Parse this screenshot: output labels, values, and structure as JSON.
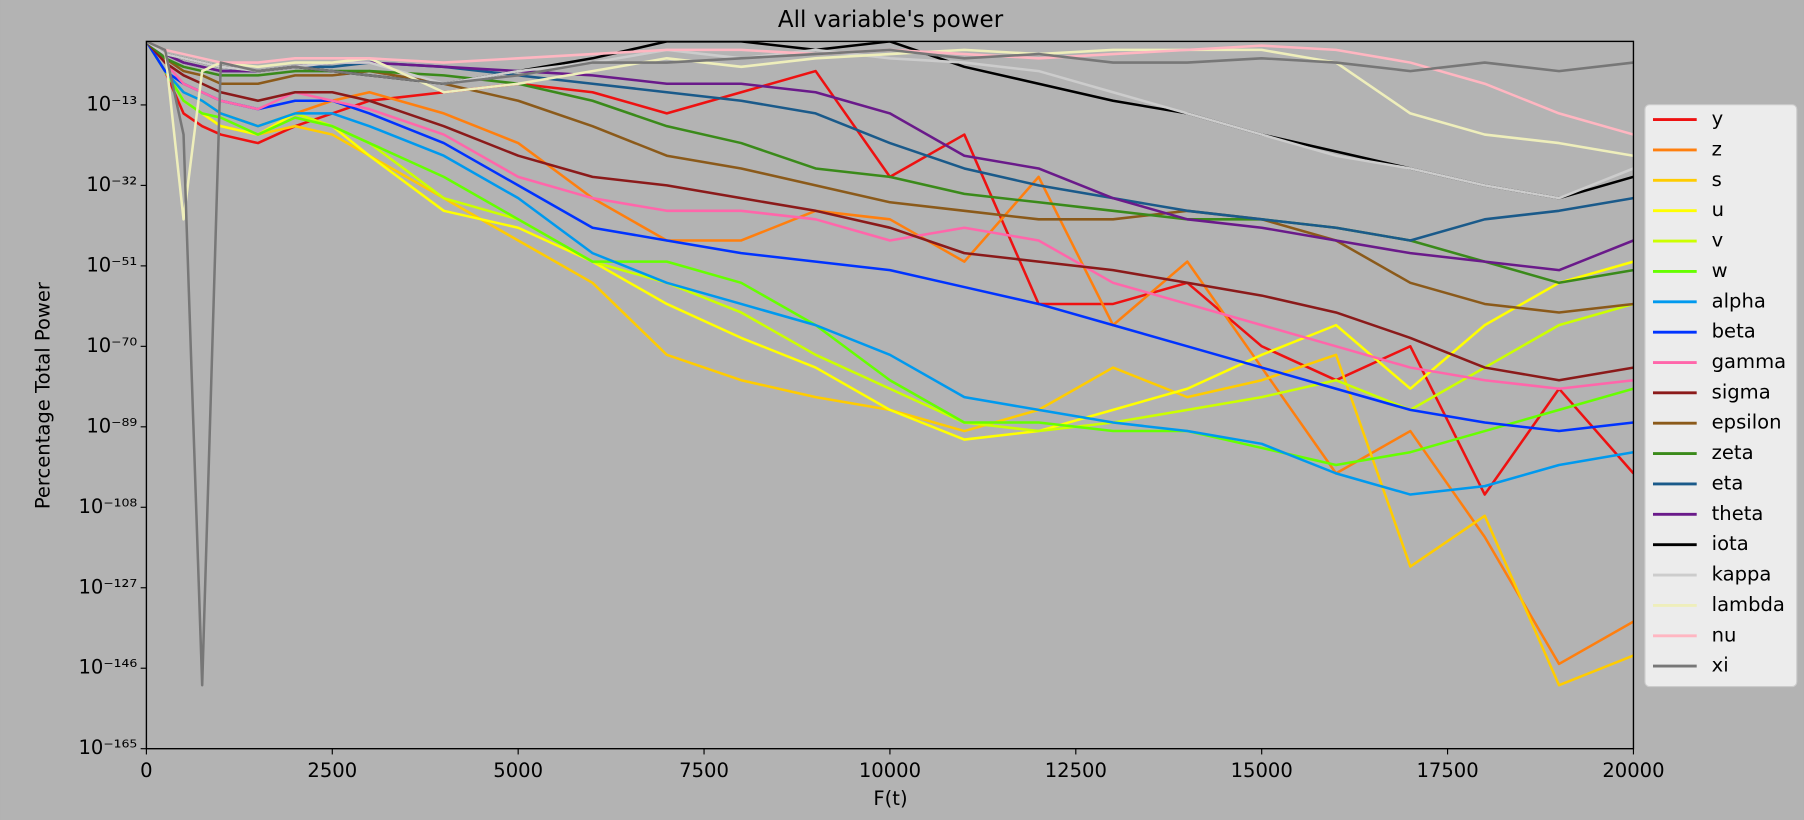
{
  "chart_data": {
    "type": "line",
    "title": "All variable's power",
    "xlabel": "F(t)",
    "ylabel": "Percentage Total Power",
    "x": [
      0,
      250,
      500,
      750,
      1000,
      1500,
      2000,
      2500,
      3000,
      4000,
      5000,
      6000,
      7000,
      8000,
      9000,
      10000,
      11000,
      12000,
      13000,
      14000,
      15000,
      16000,
      17000,
      18000,
      19000,
      20000
    ],
    "xlim": [
      0,
      20000
    ],
    "xticks": [
      0,
      2500,
      5000,
      7500,
      10000,
      12500,
      15000,
      17500,
      20000
    ],
    "ylim": [
      1e-165,
      100.0
    ],
    "ylog": true,
    "yticks": [
      {
        "value": 1e-165,
        "label": "10⁻¹⁶⁵"
      },
      {
        "value": 1e-146,
        "label": "10⁻¹⁴⁶"
      },
      {
        "value": 1e-127,
        "label": "10⁻¹²⁷"
      },
      {
        "value": 1e-108,
        "label": "10⁻¹⁰⁸"
      },
      {
        "value": 1e-89,
        "label": "10⁻⁸⁹"
      },
      {
        "value": 1e-70,
        "label": "10⁻⁷⁰"
      },
      {
        "value": 1e-51,
        "label": "10⁻⁵¹"
      },
      {
        "value": 1e-32,
        "label": "10⁻³²"
      },
      {
        "value": 1e-13,
        "label": "10⁻¹³"
      }
    ],
    "legend": "center right outside",
    "series": [
      {
        "name": "y",
        "color": "#ee1111",
        "values": [
          100.0,
          1e-05,
          1e-15,
          1e-18,
          1e-20,
          1e-22,
          1e-18,
          1e-15,
          1e-12,
          1e-10,
          1e-08,
          1e-10,
          1e-15,
          1e-10,
          1e-05,
          1e-30,
          1e-20,
          1e-60,
          1e-60,
          1e-55,
          1e-70,
          1e-78,
          1e-70,
          1e-105,
          1e-80,
          1e-100
        ]
      },
      {
        "name": "z",
        "color": "#ff7f0e",
        "values": [
          100.0,
          1e-05,
          1e-10,
          1e-12,
          1e-15,
          1e-18,
          1e-15,
          1e-12,
          1e-10,
          1e-15,
          1e-22,
          1e-35,
          1e-45,
          1e-45,
          1e-38,
          1e-40,
          1e-50,
          1e-30,
          1e-65,
          1e-50,
          1e-75,
          1e-100,
          1e-90,
          1e-115,
          1e-145,
          1e-135
        ]
      },
      {
        "name": "s",
        "color": "#ffcc00",
        "values": [
          100.0,
          1e-05,
          1e-12,
          1e-15,
          1e-18,
          1e-20,
          1e-18,
          1e-20,
          1e-25,
          1e-35,
          1e-45,
          1e-55,
          1e-72,
          1e-78,
          1e-82,
          1e-85,
          1e-90,
          1e-85,
          1e-75,
          1e-82,
          1e-78,
          1e-72,
          1e-122,
          1e-110,
          1e-150,
          1e-143
        ]
      },
      {
        "name": "u",
        "color": "#ffff00",
        "values": [
          100.0,
          1e-05,
          1e-12,
          1e-15,
          1e-18,
          1e-20,
          1e-15,
          1e-18,
          1e-25,
          1e-38,
          1e-42,
          1e-50,
          1e-60,
          1e-68,
          1e-75,
          1e-85,
          1e-92,
          1e-90,
          1e-85,
          1e-80,
          1e-72,
          1e-65,
          1e-80,
          1e-65,
          1e-55,
          1e-50
        ]
      },
      {
        "name": "v",
        "color": "#ccff00",
        "values": [
          100.0,
          1e-05,
          1e-10,
          1e-12,
          1e-15,
          1e-18,
          1e-15,
          1e-18,
          1e-22,
          1e-35,
          1e-40,
          1e-50,
          1e-55,
          1e-62,
          1e-72,
          1e-80,
          1e-88,
          1e-90,
          1e-88,
          1e-85,
          1e-82,
          1e-78,
          1e-85,
          1e-75,
          1e-65,
          1e-60
        ]
      },
      {
        "name": "w",
        "color": "#66ff00",
        "values": [
          100.0,
          1e-05,
          1e-12,
          1e-15,
          1e-16,
          1e-20,
          1e-16,
          1e-18,
          1e-22,
          1e-30,
          1e-40,
          1e-50,
          1e-50,
          1e-55,
          1e-65,
          1e-78,
          1e-88,
          1e-88,
          1e-90,
          1e-90,
          1e-94,
          1e-98,
          1e-95,
          1e-90,
          1e-85,
          1e-80
        ]
      },
      {
        "name": "alpha",
        "color": "#0099ee",
        "values": [
          100.0,
          1e-05,
          1e-10,
          1e-12,
          1e-15,
          1e-18,
          1e-15,
          1e-15,
          1e-18,
          1e-25,
          1e-35,
          1e-48,
          1e-55,
          1e-60,
          1e-65,
          1e-72,
          1e-82,
          1e-85,
          1e-88,
          1e-90,
          1e-93,
          1e-100,
          1e-105,
          1e-103,
          1e-98,
          1e-95
        ]
      },
      {
        "name": "beta",
        "color": "#0033ff",
        "values": [
          100.0,
          1e-05,
          1e-08,
          1e-10,
          1e-12,
          1e-14,
          1e-12,
          1e-12,
          1e-15,
          1e-22,
          1e-32,
          1e-42,
          1e-45,
          1e-48,
          1e-50,
          1e-52,
          1e-56,
          1e-60,
          1e-65,
          1e-70,
          1e-75,
          1e-80,
          1e-85,
          1e-88,
          1e-90,
          1e-88
        ]
      },
      {
        "name": "gamma",
        "color": "#ff66aa",
        "values": [
          100.0,
          0.001,
          1e-08,
          1e-10,
          1e-12,
          1e-14,
          1e-10,
          1e-12,
          1e-14,
          1e-20,
          1e-30,
          1e-35,
          1e-38,
          1e-38,
          1e-40,
          1e-45,
          1e-42,
          1e-45,
          1e-55,
          1e-60,
          1e-65,
          1e-70,
          1e-75,
          1e-78,
          1e-80,
          1e-78
        ]
      },
      {
        "name": "sigma",
        "color": "#8b1a1a",
        "values": [
          100.0,
          0.001,
          1e-06,
          1e-08,
          1e-10,
          1e-12,
          1e-10,
          1e-10,
          1e-12,
          1e-18,
          1e-25,
          1e-30,
          1e-32,
          1e-35,
          1e-38,
          1e-42,
          1e-48,
          1e-50,
          1e-52,
          1e-55,
          1e-58,
          1e-62,
          1e-68,
          1e-75,
          1e-78,
          1e-75
        ]
      },
      {
        "name": "epsilon",
        "color": "#8b5a1a",
        "values": [
          100.0,
          0.01,
          1e-05,
          1e-06,
          1e-08,
          1e-08,
          1e-06,
          1e-06,
          1e-05,
          1e-08,
          1e-12,
          1e-18,
          1e-25,
          1e-28,
          1e-32,
          1e-36,
          1e-38,
          1e-40,
          1e-40,
          1e-38,
          1e-40,
          1e-45,
          1e-55,
          1e-60,
          1e-62,
          1e-60
        ]
      },
      {
        "name": "zeta",
        "color": "#3a8a1a",
        "values": [
          100.0,
          0.01,
          0.0001,
          1e-05,
          1e-06,
          1e-06,
          1e-05,
          1e-05,
          1e-05,
          1e-06,
          1e-08,
          1e-12,
          1e-18,
          1e-22,
          1e-28,
          1e-30,
          1e-34,
          1e-36,
          1e-38,
          1e-40,
          1e-40,
          1e-42,
          1e-45,
          1e-50,
          1e-55,
          1e-52
        ]
      },
      {
        "name": "eta",
        "color": "#1a5a8a",
        "values": [
          100.0,
          0.1,
          0.001,
          0.0001,
          1e-05,
          1e-05,
          0.0001,
          0.0001,
          0.001,
          0.0001,
          1e-06,
          1e-08,
          1e-10,
          1e-12,
          1e-15,
          1e-22,
          1e-28,
          1e-32,
          1e-35,
          1e-38,
          1e-40,
          1e-42,
          1e-45,
          1e-40,
          1e-38,
          1e-35
        ]
      },
      {
        "name": "theta",
        "color": "#6a1a8a",
        "values": [
          100.0,
          0.1,
          0.001,
          0.0001,
          1e-05,
          1e-05,
          0.0001,
          0.001,
          0.001,
          0.0001,
          1e-05,
          1e-06,
          1e-08,
          1e-08,
          1e-10,
          1e-15,
          1e-25,
          1e-28,
          1e-35,
          1e-40,
          1e-42,
          1e-45,
          1e-48,
          1e-50,
          1e-52,
          1e-45
        ]
      },
      {
        "name": "iota",
        "color": "#000000",
        "values": [
          100.0,
          0.1,
          0.01,
          0.001,
          0.0001,
          1e-05,
          0.0001,
          1e-05,
          1e-06,
          1e-08,
          1e-05,
          0.01,
          100.0,
          100.0,
          1,
          100.0,
          0.0001,
          1e-08,
          1e-12,
          1e-15,
          1e-20,
          1e-24,
          1e-28,
          1e-32,
          1e-35,
          1e-30
        ]
      },
      {
        "name": "kappa",
        "color": "#cccccc",
        "values": [
          100.0,
          0.1,
          0.01,
          0.001,
          0.0001,
          1e-05,
          0.0001,
          0.001,
          0.001,
          1e-08,
          1e-05,
          0.001,
          1,
          0.01,
          1,
          0.01,
          0.001,
          1e-05,
          1e-10,
          1e-15,
          1e-20,
          1e-25,
          1e-28,
          1e-32,
          1e-35,
          1e-28
        ]
      },
      {
        "name": "lambda",
        "color": "#eeeebb",
        "values": [
          100.0,
          1,
          1e-40,
          1e-05,
          0.001,
          0.0001,
          0.001,
          0.001,
          0.01,
          1e-10,
          1e-08,
          1e-05,
          0.01,
          0.0001,
          0.01,
          0.1,
          1,
          0.1,
          1,
          1,
          1,
          0.001,
          1e-15,
          1e-20,
          1e-22,
          1e-25
        ]
      },
      {
        "name": "nu",
        "color": "#ffb6c1",
        "values": [
          100.0,
          1,
          0.1,
          0.01,
          0.001,
          0.001,
          0.01,
          0.01,
          0.01,
          0.001,
          0.01,
          0.1,
          1,
          1,
          0.1,
          1,
          0.1,
          0.01,
          0.1,
          1,
          10.0,
          1,
          0.001,
          1e-08,
          1e-15,
          1e-20
        ]
      },
      {
        "name": "xi",
        "color": "#777777",
        "values": [
          100.0,
          1,
          1e-20,
          1e-150,
          0.001,
          1e-05,
          0.0001,
          1e-05,
          1e-06,
          1e-08,
          1e-06,
          0.001,
          0.001,
          0.01,
          0.1,
          1,
          0.01,
          0.1,
          0.001,
          0.001,
          0.01,
          0.001,
          1e-05,
          0.001,
          1e-05,
          0.001
        ]
      }
    ]
  }
}
